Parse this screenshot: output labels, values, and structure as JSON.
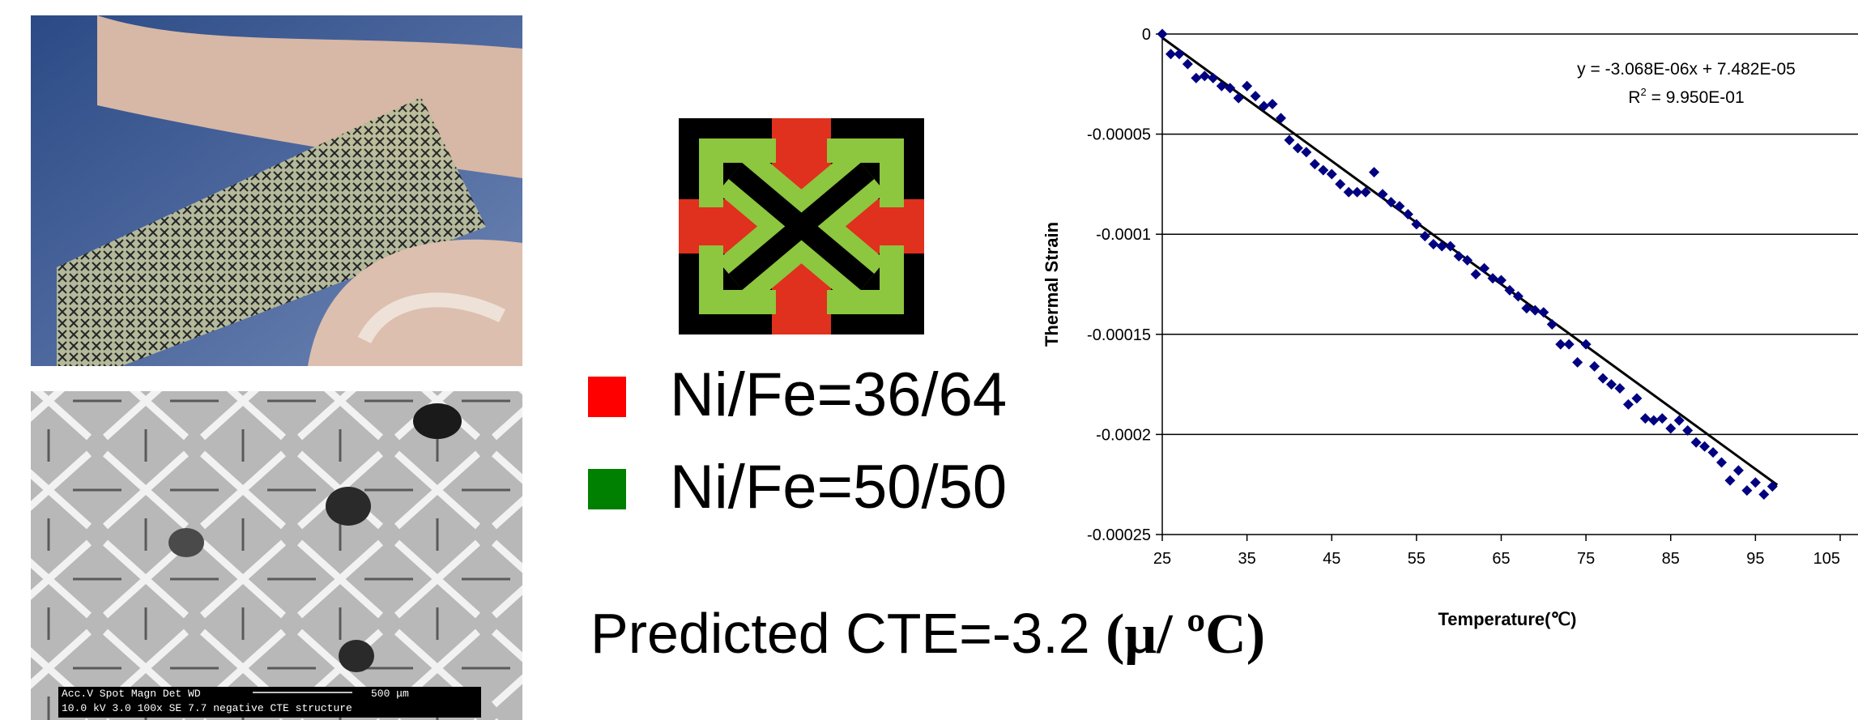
{
  "legend": [
    {
      "label": "Ni/Fe=36/64",
      "color": "#ff0000"
    },
    {
      "label": "Ni/Fe=50/50",
      "color": "#008000"
    }
  ],
  "caption": {
    "text": "Predicted CTE=-3.2 ",
    "unit": "(μ/ ºC)"
  },
  "sem_info": {
    "line1": "Acc.V  Spot Magn    Det  WD",
    "scale": "500 μm",
    "line2": "10.0 kV 3.0   100x     SE   7.7   negative CTE structure"
  },
  "chart_data": {
    "type": "scatter",
    "x_label": "Temperature(℃)",
    "y_label": "Thermal Strain",
    "color": "#000080",
    "x": [
      25,
      26,
      27,
      28,
      29,
      30,
      31,
      32,
      33,
      34,
      35,
      36,
      37,
      38,
      39,
      40,
      41,
      42,
      43,
      44,
      45,
      46,
      47,
      48,
      49,
      50,
      51,
      52,
      53,
      54,
      55,
      56,
      57,
      58,
      59,
      60,
      61,
      62,
      63,
      64,
      65,
      66,
      67,
      68,
      69,
      70,
      71,
      72,
      73,
      74,
      75,
      76,
      77,
      78,
      79,
      80,
      81,
      82,
      83,
      84,
      85,
      86,
      87,
      88,
      89,
      90,
      91,
      92,
      93,
      94,
      95,
      96,
      97
    ],
    "values": [
      0,
      -1e-05,
      -1e-05,
      -1.5e-05,
      -2.2e-05,
      -2.1e-05,
      -2.2e-05,
      -2.6e-05,
      -2.7e-05,
      -3.2e-05,
      -2.6e-05,
      -3.1e-05,
      -3.6e-05,
      -3.5e-05,
      -4.2e-05,
      -5.3e-05,
      -5.7e-05,
      -5.9e-05,
      -6.5e-05,
      -6.8e-05,
      -7e-05,
      -7.5e-05,
      -7.9e-05,
      -7.9e-05,
      -7.9e-05,
      -6.9e-05,
      -8e-05,
      -8.4e-05,
      -8.6e-05,
      -9e-05,
      -9.5e-05,
      -0.000101,
      -0.000105,
      -0.000106,
      -0.000106,
      -0.000111,
      -0.000113,
      -0.00012,
      -0.000117,
      -0.000122,
      -0.000123,
      -0.000128,
      -0.000131,
      -0.000137,
      -0.000138,
      -0.000139,
      -0.000145,
      -0.000155,
      -0.000155,
      -0.000164,
      -0.000155,
      -0.000166,
      -0.000172,
      -0.000175,
      -0.000177,
      -0.000185,
      -0.000182,
      -0.000192,
      -0.000193,
      -0.000192,
      -0.000197,
      -0.000193,
      -0.000198,
      -0.000204,
      -0.000206,
      -0.000209,
      -0.000214,
      -0.000223,
      -0.000218,
      -0.000228,
      -0.000224,
      -0.00023,
      -0.000226
    ],
    "trendline": {
      "slope": -3.068e-06,
      "intercept": 7.482e-05,
      "label": "y = -3.068E-06x + 7.482E-05"
    },
    "r_squared_label": {
      "base": "R",
      "sup": "2",
      "rest": " = 9.950E-01"
    },
    "xlim": [
      25,
      105
    ],
    "xticks": [
      25,
      35,
      45,
      55,
      65,
      75,
      85,
      95,
      105
    ],
    "ylim": [
      -0.00025,
      0
    ],
    "yticks": [
      0,
      -5e-05,
      -0.0001,
      -0.00015,
      -0.0002,
      -0.00025
    ],
    "grid": true
  }
}
